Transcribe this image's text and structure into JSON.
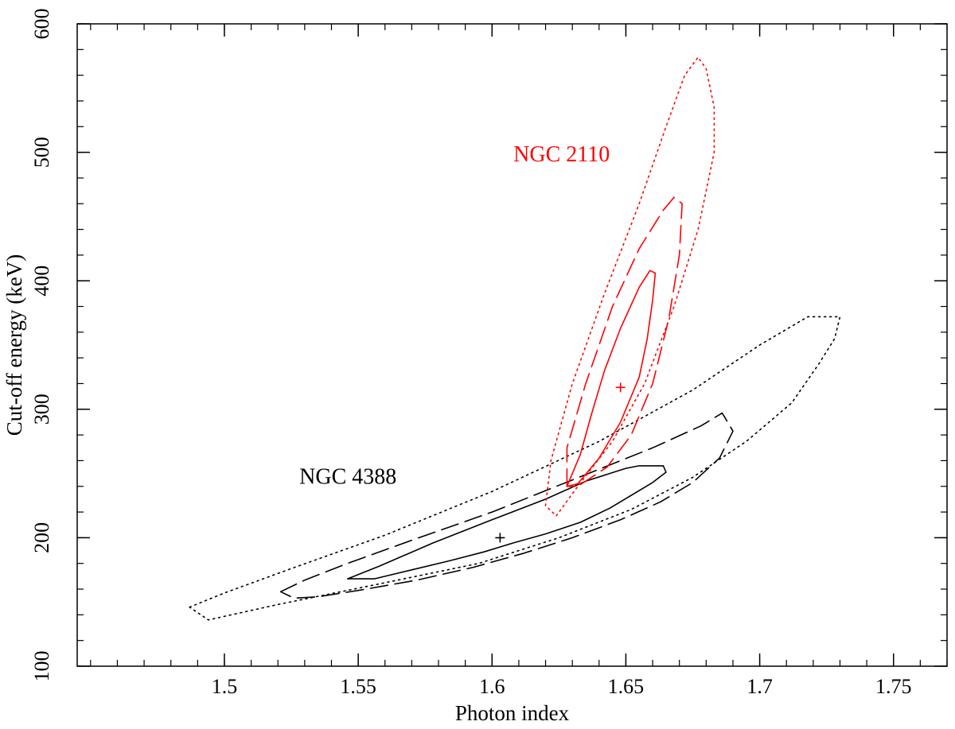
{
  "chart_data": {
    "type": "line",
    "title": "",
    "xlabel": "Photon index",
    "ylabel": "Cut-off energy (keV)",
    "xlim": [
      1.445,
      1.77
    ],
    "ylim": [
      100,
      600
    ],
    "grid": false,
    "x_ticks": [
      1.5,
      1.55,
      1.6,
      1.65,
      1.7,
      1.75
    ],
    "x_tick_labels": [
      "1.5",
      "1.55",
      "1.6",
      "1.65",
      "1.7",
      "1.75"
    ],
    "x_minor_step": 0.01,
    "y_ticks": [
      100,
      200,
      300,
      400,
      500,
      600
    ],
    "y_tick_labels": [
      "100",
      "200",
      "300",
      "400",
      "500",
      "600"
    ],
    "y_minor_step": 20,
    "colors": {
      "ngc4388": "#000000",
      "ngc2110": "#ff0000"
    },
    "annotations": [
      {
        "text": "NGC 4388",
        "x": 1.528,
        "y": 242,
        "color": "#000000"
      },
      {
        "text": "NGC 2110",
        "x": 1.608,
        "y": 493,
        "color": "#ff0000"
      }
    ],
    "best_fit": [
      {
        "x": 1.603,
        "y": 200,
        "color": "#000000"
      },
      {
        "x": 1.648,
        "y": 317,
        "color": "#ff0000"
      }
    ],
    "series": [
      {
        "color": "#000000",
        "dash": "solid",
        "points": [
          [
            1.546,
            168
          ],
          [
            1.558,
            178
          ],
          [
            1.578,
            196
          ],
          [
            1.6,
            214
          ],
          [
            1.62,
            230
          ],
          [
            1.635,
            244
          ],
          [
            1.65,
            254
          ],
          [
            1.655,
            256
          ],
          [
            1.664,
            256
          ],
          [
            1.665,
            251
          ],
          [
            1.66,
            243
          ],
          [
            1.652,
            233
          ],
          [
            1.644,
            223
          ],
          [
            1.633,
            212
          ],
          [
            1.62,
            203
          ],
          [
            1.608,
            196
          ],
          [
            1.597,
            189
          ],
          [
            1.584,
            182
          ],
          [
            1.57,
            175
          ],
          [
            1.556,
            168
          ],
          [
            1.546,
            168
          ]
        ]
      },
      {
        "color": "#000000",
        "dash": "dashed",
        "points": [
          [
            1.521,
            158
          ],
          [
            1.53,
            167
          ],
          [
            1.546,
            180
          ],
          [
            1.57,
            198
          ],
          [
            1.6,
            220
          ],
          [
            1.63,
            245
          ],
          [
            1.66,
            270
          ],
          [
            1.678,
            287
          ],
          [
            1.686,
            297
          ],
          [
            1.69,
            283
          ],
          [
            1.685,
            262
          ],
          [
            1.675,
            243
          ],
          [
            1.663,
            228
          ],
          [
            1.648,
            214
          ],
          [
            1.63,
            200
          ],
          [
            1.612,
            188
          ],
          [
            1.593,
            177
          ],
          [
            1.572,
            167
          ],
          [
            1.55,
            159
          ],
          [
            1.535,
            154
          ],
          [
            1.526,
            153
          ],
          [
            1.521,
            158
          ]
        ]
      },
      {
        "color": "#000000",
        "dash": "dotted",
        "points": [
          [
            1.487,
            146
          ],
          [
            1.5,
            157
          ],
          [
            1.525,
            176
          ],
          [
            1.56,
            202
          ],
          [
            1.6,
            236
          ],
          [
            1.64,
            275
          ],
          [
            1.675,
            315
          ],
          [
            1.7,
            350
          ],
          [
            1.718,
            372
          ],
          [
            1.73,
            372
          ],
          [
            1.728,
            355
          ],
          [
            1.722,
            335
          ],
          [
            1.712,
            305
          ],
          [
            1.695,
            275
          ],
          [
            1.675,
            247
          ],
          [
            1.652,
            222
          ],
          [
            1.625,
            200
          ],
          [
            1.595,
            180
          ],
          [
            1.56,
            165
          ],
          [
            1.52,
            148
          ],
          [
            1.494,
            136
          ],
          [
            1.487,
            146
          ]
        ]
      },
      {
        "color": "#ff0000",
        "dash": "solid",
        "points": [
          [
            1.633,
            265
          ],
          [
            1.637,
            295
          ],
          [
            1.642,
            330
          ],
          [
            1.648,
            363
          ],
          [
            1.655,
            395
          ],
          [
            1.659,
            408
          ],
          [
            1.661,
            406
          ],
          [
            1.66,
            385
          ],
          [
            1.658,
            355
          ],
          [
            1.655,
            325
          ],
          [
            1.648,
            290
          ],
          [
            1.64,
            262
          ],
          [
            1.632,
            242
          ],
          [
            1.628,
            240
          ],
          [
            1.633,
            265
          ]
        ]
      },
      {
        "color": "#ff0000",
        "dash": "dashed",
        "points": [
          [
            1.628,
            240
          ],
          [
            1.628,
            270
          ],
          [
            1.635,
            320
          ],
          [
            1.645,
            380
          ],
          [
            1.655,
            425
          ],
          [
            1.664,
            455
          ],
          [
            1.668,
            465
          ],
          [
            1.671,
            460
          ],
          [
            1.67,
            420
          ],
          [
            1.666,
            370
          ],
          [
            1.66,
            320
          ],
          [
            1.652,
            280
          ],
          [
            1.643,
            255
          ],
          [
            1.632,
            240
          ],
          [
            1.628,
            240
          ]
        ]
      },
      {
        "color": "#ff0000",
        "dash": "dotted",
        "points": [
          [
            1.62,
            225
          ],
          [
            1.622,
            260
          ],
          [
            1.63,
            320
          ],
          [
            1.642,
            390
          ],
          [
            1.655,
            460
          ],
          [
            1.665,
            520
          ],
          [
            1.672,
            560
          ],
          [
            1.677,
            574
          ],
          [
            1.68,
            565
          ],
          [
            1.683,
            535
          ],
          [
            1.683,
            500
          ],
          [
            1.677,
            440
          ],
          [
            1.668,
            380
          ],
          [
            1.657,
            320
          ],
          [
            1.645,
            275
          ],
          [
            1.632,
            240
          ],
          [
            1.624,
            217
          ],
          [
            1.62,
            225
          ]
        ]
      }
    ]
  }
}
